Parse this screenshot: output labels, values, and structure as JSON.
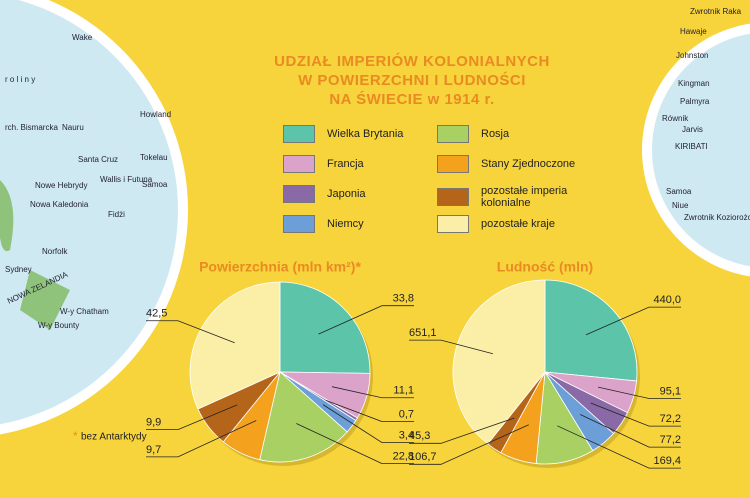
{
  "header": {
    "title_lines": [
      "UDZIAŁ IMPERIÓW KOLONIALNYCH",
      "W POWIERZCHNI I LUDNOŚCI",
      "NA ŚWIECIE w 1914 r."
    ]
  },
  "legend": {
    "labels": [
      "Wielka Brytania",
      "Francja",
      "Japonia",
      "Niemcy",
      "Rosja",
      "Stany Zjednoczone",
      "pozostałe imperia kolonialne",
      "pozostałe kraje"
    ],
    "colors": [
      "#5cc4a8",
      "#dba3c9",
      "#8a6aa6",
      "#6c9fd8",
      "#a9d062",
      "#f4a21e",
      "#b5651a",
      "#fbeea6"
    ]
  },
  "chart_data": [
    {
      "type": "pie",
      "title": "Powierzchnia (mln km²)*",
      "values": [
        33.8,
        11.1,
        0.7,
        3.4,
        22.8,
        9.7,
        9.9,
        42.5
      ],
      "value_labels": [
        "33,8",
        "11,1",
        "0,7",
        "3,4",
        "22,8",
        "9,7",
        "9,9",
        "42,5"
      ]
    },
    {
      "type": "pie",
      "title": "Ludność (mln)",
      "values": [
        440.0,
        95.1,
        72.2,
        77.2,
        169.4,
        106.7,
        45.3,
        651.1
      ],
      "value_labels": [
        "440,0",
        "95,1",
        "72,2",
        "77,2",
        "169,4",
        "106,7",
        "45,3",
        "651,1"
      ]
    }
  ],
  "footnote": {
    "marker": "*",
    "text": "bez Antarktydy"
  },
  "map_labels": {
    "left": [
      "Wake",
      "r o l i n y",
      "rch. Bismarcka",
      "Nauru",
      "Howland",
      "Tokelau",
      "Santa Cruz",
      "Wallis i Futuna",
      "Samoa",
      "Nowe Hebrydy",
      "Nowa Kaledonia",
      "Fidżi",
      "Norfolk",
      "Sydney",
      "NOWA ZELANDIA",
      "W-y Chatham",
      "W-y Bounty"
    ],
    "right": [
      "Zwrotnik Raka",
      "Hawaje",
      "Johnston",
      "Kingman",
      "Palmyra",
      "Równik",
      "Jarvis",
      "KIRIBATI",
      "Samoa",
      "Niue",
      "Zwrotnik Koziorożca"
    ]
  }
}
